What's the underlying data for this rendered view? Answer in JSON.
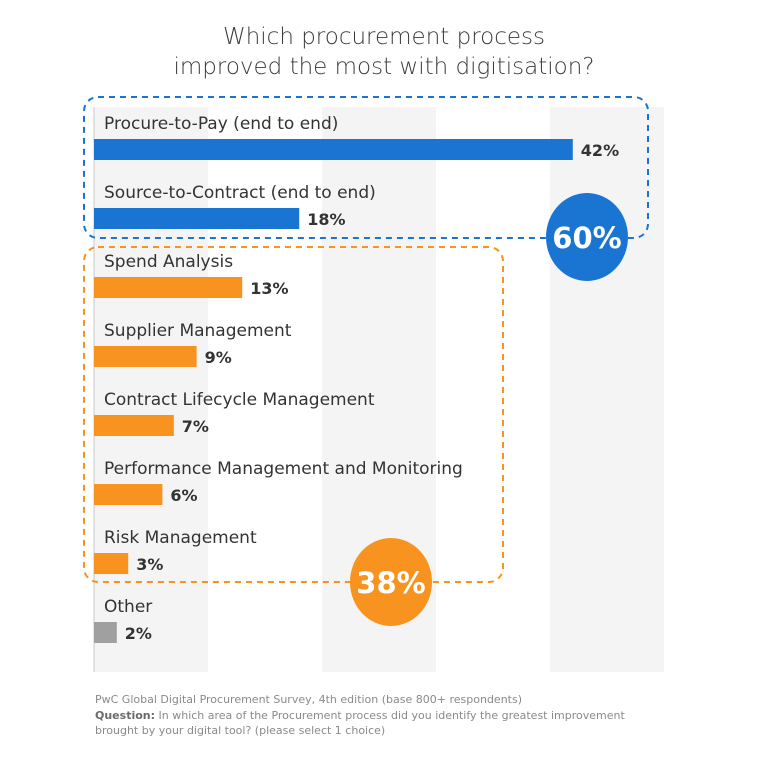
{
  "chart_data": {
    "type": "bar",
    "orientation": "horizontal",
    "title": [
      "Which procurement process",
      "improved the most with digitisation?"
    ],
    "categories": [
      "Procure-to-Pay (end to end)",
      "Source-to-Contract (end to end)",
      "Spend Analysis",
      "Supplier Management",
      "Contract Lifecycle Management",
      "Performance Management and Monitoring",
      "Risk Management",
      "Other"
    ],
    "values": [
      42,
      18,
      13,
      9,
      7,
      6,
      3,
      2
    ],
    "value_labels": [
      "42%",
      "18%",
      "13%",
      "9%",
      "7%",
      "6%",
      "3%",
      "2%"
    ],
    "bar_colors": [
      "#1a75d2",
      "#1a75d2",
      "#f7931e",
      "#f7931e",
      "#f7931e",
      "#f7931e",
      "#f7931e",
      "#a0a0a0"
    ],
    "xlim": [
      0,
      50
    ],
    "grid": "alternating vertical bands every 10%",
    "groups": [
      {
        "label": "60%",
        "color": "#1a75d2",
        "members": [
          0,
          1
        ]
      },
      {
        "label": "38%",
        "color": "#f7931e",
        "members": [
          2,
          3,
          4,
          5,
          6
        ]
      }
    ]
  },
  "footer": {
    "source": "PwC Global Digital Procurement Survey, 4th edition (base 800+ respondents)",
    "question_label": "Question:",
    "question_line1": " In which area of the Procurement process did you identify the greatest improvement",
    "question_line2": "brought by your digital tool? (please select 1 choice)"
  }
}
